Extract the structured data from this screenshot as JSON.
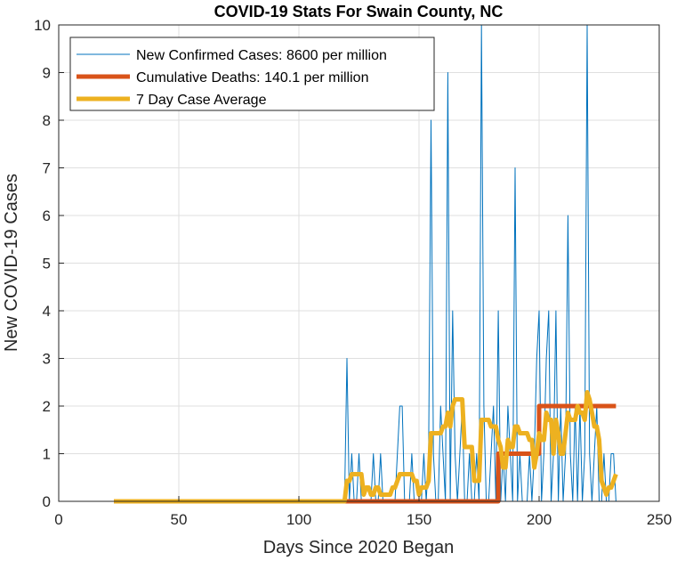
{
  "chart_data": {
    "type": "line",
    "title": "COVID-19 Stats For Swain County, NC",
    "xlabel": "Days Since 2020 Began",
    "ylabel": "New COVID-19 Cases",
    "xlim": [
      0,
      250
    ],
    "ylim": [
      0,
      10
    ],
    "xticks": [
      0,
      50,
      100,
      150,
      200,
      250
    ],
    "yticks": [
      0,
      1,
      2,
      3,
      4,
      5,
      6,
      7,
      8,
      9,
      10
    ],
    "grid": true,
    "legend_position": "top-left",
    "series": [
      {
        "name": "New Confirmed Cases: 8600 per million",
        "color": "#0072BD",
        "style": "thin",
        "x": [
          23,
          119,
          120,
          121,
          122,
          123,
          124,
          125,
          126,
          127,
          128,
          129,
          130,
          131,
          132,
          133,
          134,
          135,
          136,
          137,
          138,
          139,
          140,
          141,
          142,
          143,
          144,
          145,
          146,
          147,
          148,
          149,
          150,
          151,
          152,
          153,
          154,
          155,
          156,
          157,
          158,
          159,
          160,
          161,
          162,
          163,
          164,
          165,
          166,
          167,
          168,
          169,
          170,
          171,
          172,
          173,
          174,
          175,
          176,
          177,
          178,
          179,
          180,
          181,
          182,
          183,
          184,
          185,
          186,
          187,
          188,
          189,
          190,
          191,
          192,
          193,
          194,
          195,
          196,
          197,
          198,
          199,
          200,
          201,
          202,
          203,
          204,
          205,
          206,
          207,
          208,
          209,
          210,
          211,
          212,
          213,
          214,
          215,
          216,
          217,
          218,
          219,
          220,
          221,
          222,
          223,
          224,
          225,
          226,
          227,
          228,
          229,
          230,
          231,
          232
        ],
        "y": [
          0,
          0,
          3,
          0,
          1,
          0,
          0,
          1,
          0,
          0,
          0,
          0,
          0,
          1,
          0,
          0,
          1,
          0,
          0,
          0,
          0,
          0,
          0,
          1,
          2,
          2,
          0,
          0,
          0,
          1,
          0,
          0,
          0,
          0,
          1,
          0,
          1,
          8,
          1,
          0,
          0,
          2,
          1,
          0,
          9,
          0,
          4,
          1,
          0,
          1,
          2,
          0,
          0,
          1,
          0,
          0,
          1,
          0,
          10,
          2,
          0,
          0,
          1,
          2,
          0,
          4,
          0,
          1,
          0,
          2,
          1,
          0,
          7,
          0,
          1,
          0,
          0,
          0,
          1,
          0,
          1,
          3,
          4,
          0,
          1,
          3,
          4,
          0,
          1,
          4,
          0,
          2,
          0,
          1,
          6,
          1,
          0,
          2,
          0,
          2,
          0,
          1,
          10,
          1,
          0,
          1,
          2,
          0,
          0,
          1,
          0,
          0,
          1,
          1,
          0
        ],
        "linewidth": 1
      },
      {
        "name": "Cumulative Deaths: 140.1 per million",
        "color": "#D95319",
        "style": "thick",
        "x": [
          23,
          182,
          182,
          183,
          183,
          198,
          198,
          200,
          200,
          232
        ],
        "y": [
          0,
          0,
          0,
          0,
          1,
          1,
          1,
          1,
          2,
          2
        ],
        "linewidth": 5
      },
      {
        "name": "7 Day Case Average",
        "color": "#EDB120",
        "style": "thick",
        "x": [
          23,
          119,
          120,
          121,
          122,
          123,
          124,
          125,
          126,
          127,
          128,
          129,
          130,
          131,
          132,
          133,
          134,
          135,
          136,
          137,
          138,
          139,
          140,
          141,
          142,
          143,
          144,
          145,
          146,
          147,
          148,
          149,
          150,
          151,
          152,
          153,
          154,
          155,
          156,
          157,
          158,
          159,
          160,
          161,
          162,
          163,
          164,
          165,
          166,
          167,
          168,
          169,
          170,
          171,
          172,
          173,
          174,
          175,
          176,
          177,
          178,
          179,
          180,
          181,
          182,
          183,
          184,
          185,
          186,
          187,
          188,
          189,
          190,
          191,
          192,
          193,
          194,
          195,
          196,
          197,
          198,
          199,
          200,
          201,
          202,
          203,
          204,
          205,
          206,
          207,
          208,
          209,
          210,
          211,
          212,
          213,
          214,
          215,
          216,
          217,
          218,
          219,
          220,
          221,
          222,
          223,
          224,
          225,
          226,
          227,
          228,
          229,
          230,
          231,
          232
        ],
        "y": [
          0,
          0,
          0.43,
          0.43,
          0.57,
          0.57,
          0.57,
          0.57,
          0.57,
          0.14,
          0.29,
          0.29,
          0.14,
          0.14,
          0.29,
          0.29,
          0.14,
          0.14,
          0.14,
          0.14,
          0.14,
          0.29,
          0.29,
          0.43,
          0.57,
          0.57,
          0.57,
          0.57,
          0.57,
          0.57,
          0.43,
          0.43,
          0.14,
          0.29,
          0.29,
          0.29,
          0.43,
          1.43,
          1.43,
          1.43,
          1.43,
          1.43,
          1.57,
          1.57,
          1.86,
          1.57,
          2.0,
          2.14,
          2.14,
          2.14,
          2.14,
          1.14,
          1.14,
          1.14,
          1.14,
          0.43,
          0.43,
          0.43,
          1.71,
          1.71,
          1.71,
          1.71,
          1.57,
          1.57,
          1.57,
          1.29,
          1.14,
          0.71,
          0.71,
          1.29,
          1.14,
          1.14,
          1.57,
          1.57,
          1.43,
          1.43,
          1.43,
          1.43,
          1.29,
          1.29,
          0.71,
          1.0,
          1.43,
          1.29,
          1.29,
          1.86,
          1.71,
          1.71,
          1.0,
          1.71,
          1.43,
          1.0,
          1.0,
          1.43,
          1.86,
          1.71,
          1.71,
          1.71,
          2.0,
          1.86,
          1.86,
          1.71,
          2.29,
          2.14,
          1.86,
          1.57,
          1.57,
          1.29,
          0.43,
          0.29,
          0.14,
          0.29,
          0.29,
          0.43,
          0.57
        ],
        "linewidth": 5
      }
    ]
  }
}
